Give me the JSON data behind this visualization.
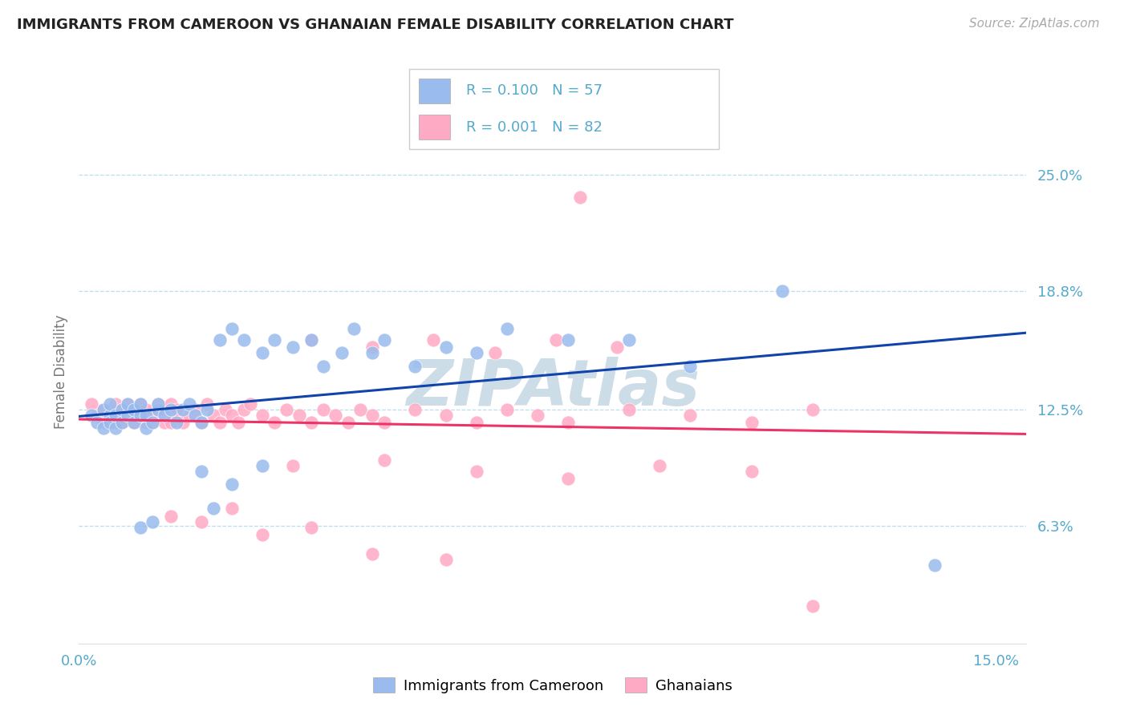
{
  "title": "IMMIGRANTS FROM CAMEROON VS GHANAIAN FEMALE DISABILITY CORRELATION CHART",
  "source": "Source: ZipAtlas.com",
  "ylabel": "Female Disability",
  "xlim": [
    0.0,
    0.155
  ],
  "ylim": [
    0.0,
    0.29
  ],
  "ytick_vals": [
    0.063,
    0.125,
    0.188,
    0.25
  ],
  "ytick_labels": [
    "6.3%",
    "12.5%",
    "18.8%",
    "25.0%"
  ],
  "xtick_vals": [
    0.0,
    0.15
  ],
  "xtick_labels": [
    "0.0%",
    "15.0%"
  ],
  "legend_r1": "R = 0.100",
  "legend_n1": "N = 57",
  "legend_r2": "R = 0.001",
  "legend_n2": "N = 82",
  "label1": "Immigrants from Cameroon",
  "label2": "Ghanaians",
  "color_blue": "#99BBEE",
  "color_pink": "#FFAAC4",
  "color_blue_line": "#1144AA",
  "color_pink_line": "#EE3366",
  "color_axis": "#55AACC",
  "bg": "#FFFFFF",
  "grid_color": "#BBDDEE",
  "watermark": "ZIPAtlas",
  "watermark_color": "#CCDDE8",
  "blue_x": [
    0.002,
    0.003,
    0.004,
    0.004,
    0.005,
    0.005,
    0.005,
    0.006,
    0.006,
    0.007,
    0.007,
    0.008,
    0.008,
    0.009,
    0.009,
    0.01,
    0.01,
    0.011,
    0.011,
    0.012,
    0.013,
    0.013,
    0.014,
    0.015,
    0.016,
    0.017,
    0.018,
    0.019,
    0.02,
    0.021,
    0.023,
    0.025,
    0.027,
    0.03,
    0.032,
    0.035,
    0.038,
    0.04,
    0.043,
    0.045,
    0.048,
    0.05,
    0.055,
    0.06,
    0.065,
    0.07,
    0.08,
    0.09,
    0.1,
    0.115,
    0.02,
    0.025,
    0.03,
    0.01,
    0.012,
    0.022,
    0.14
  ],
  "blue_y": [
    0.122,
    0.118,
    0.125,
    0.115,
    0.122,
    0.118,
    0.128,
    0.115,
    0.122,
    0.125,
    0.118,
    0.122,
    0.128,
    0.118,
    0.125,
    0.122,
    0.128,
    0.115,
    0.122,
    0.118,
    0.125,
    0.128,
    0.122,
    0.125,
    0.118,
    0.125,
    0.128,
    0.122,
    0.118,
    0.125,
    0.162,
    0.168,
    0.162,
    0.155,
    0.162,
    0.158,
    0.162,
    0.148,
    0.155,
    0.168,
    0.155,
    0.162,
    0.148,
    0.158,
    0.155,
    0.168,
    0.162,
    0.162,
    0.148,
    0.188,
    0.092,
    0.085,
    0.095,
    0.062,
    0.065,
    0.072,
    0.042
  ],
  "pink_x": [
    0.002,
    0.003,
    0.004,
    0.004,
    0.005,
    0.005,
    0.006,
    0.006,
    0.007,
    0.007,
    0.008,
    0.008,
    0.009,
    0.009,
    0.01,
    0.01,
    0.011,
    0.011,
    0.012,
    0.012,
    0.013,
    0.013,
    0.014,
    0.014,
    0.015,
    0.015,
    0.016,
    0.016,
    0.017,
    0.018,
    0.019,
    0.02,
    0.021,
    0.022,
    0.023,
    0.024,
    0.025,
    0.026,
    0.027,
    0.028,
    0.03,
    0.032,
    0.034,
    0.036,
    0.038,
    0.04,
    0.042,
    0.044,
    0.046,
    0.048,
    0.05,
    0.055,
    0.06,
    0.065,
    0.07,
    0.075,
    0.08,
    0.09,
    0.1,
    0.11,
    0.12,
    0.038,
    0.048,
    0.058,
    0.068,
    0.078,
    0.088,
    0.035,
    0.05,
    0.065,
    0.08,
    0.095,
    0.11,
    0.015,
    0.02,
    0.025,
    0.03,
    0.038,
    0.048,
    0.06,
    0.082,
    0.12
  ],
  "pink_y": [
    0.128,
    0.122,
    0.125,
    0.118,
    0.125,
    0.122,
    0.118,
    0.128,
    0.125,
    0.118,
    0.122,
    0.128,
    0.118,
    0.125,
    0.122,
    0.128,
    0.118,
    0.125,
    0.122,
    0.118,
    0.128,
    0.122,
    0.118,
    0.125,
    0.128,
    0.118,
    0.122,
    0.125,
    0.118,
    0.122,
    0.125,
    0.118,
    0.128,
    0.122,
    0.118,
    0.125,
    0.122,
    0.118,
    0.125,
    0.128,
    0.122,
    0.118,
    0.125,
    0.122,
    0.118,
    0.125,
    0.122,
    0.118,
    0.125,
    0.122,
    0.118,
    0.125,
    0.122,
    0.118,
    0.125,
    0.122,
    0.118,
    0.125,
    0.122,
    0.118,
    0.125,
    0.162,
    0.158,
    0.162,
    0.155,
    0.162,
    0.158,
    0.095,
    0.098,
    0.092,
    0.088,
    0.095,
    0.092,
    0.068,
    0.065,
    0.072,
    0.058,
    0.062,
    0.048,
    0.045,
    0.238,
    0.02
  ]
}
